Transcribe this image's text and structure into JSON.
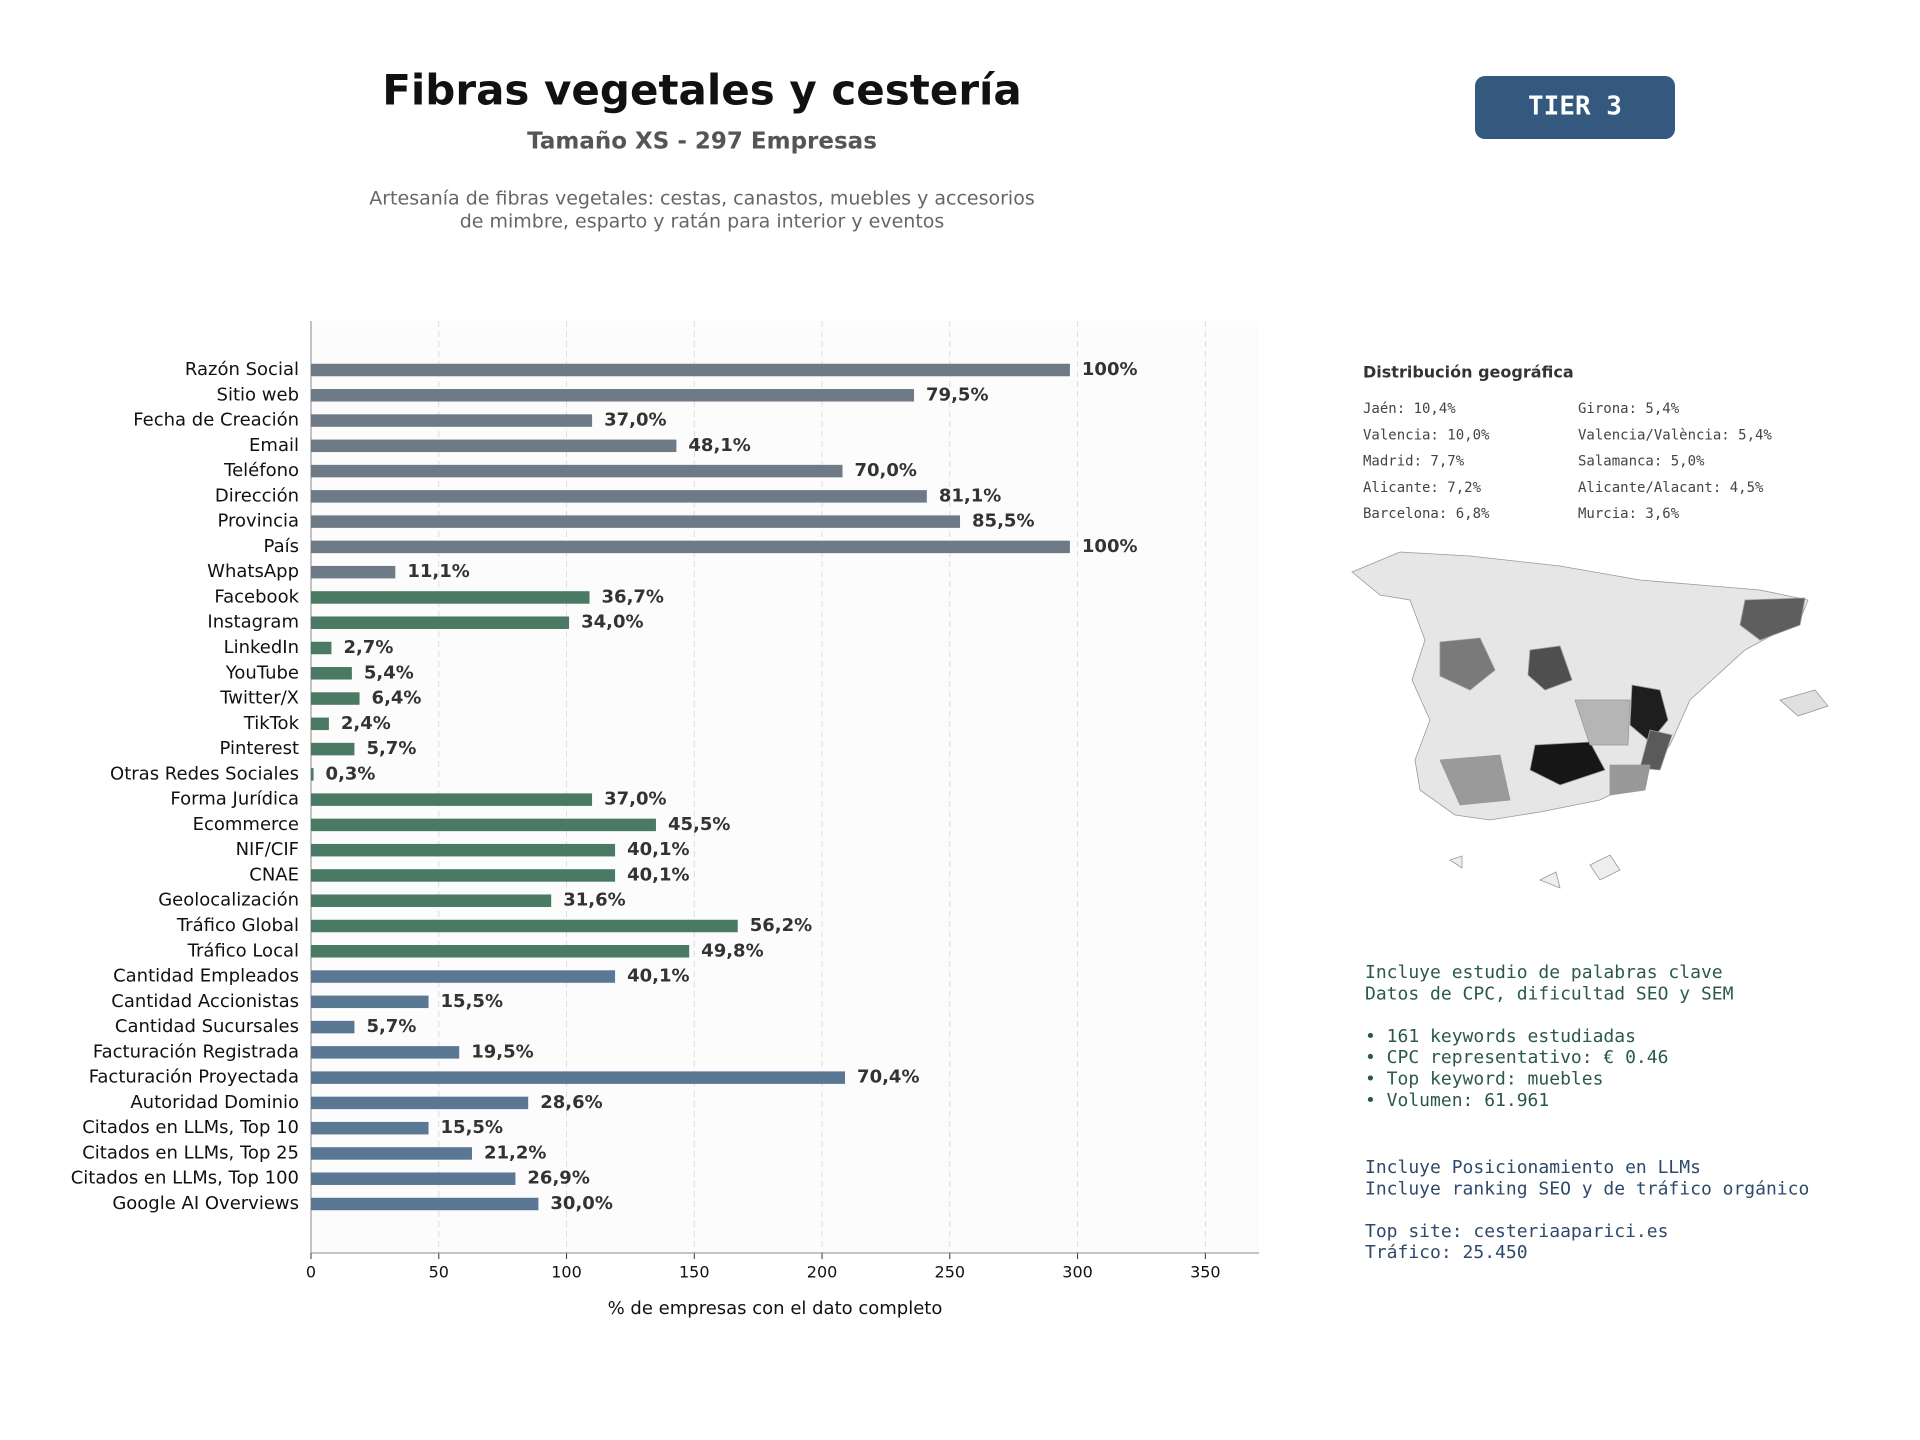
{
  "chart_data": {
    "type": "bar",
    "orientation": "horizontal",
    "title": "Fibras vegetales y cestería",
    "subtitle": "Tamaño XS - 297 Empresas",
    "description": [
      "Artesanía de fibras vegetales: cestas, canastos, muebles y accesorios",
      "de mimbre, esparto y ratán para interior y eventos"
    ],
    "badge": "TIER 3",
    "x_label": "% de empresas con el dato completo",
    "categories": [
      "Razón Social",
      "Sitio web",
      "Fecha de Creación",
      "Email",
      "Teléfono",
      "Dirección",
      "Provincia",
      "País",
      "WhatsApp",
      "Facebook",
      "Instagram",
      "LinkedIn",
      "YouTube",
      "Twitter/X",
      "TikTok",
      "Pinterest",
      "Otras Redes Sociales",
      "Forma Jurídica",
      "Ecommerce",
      "NIF/CIF",
      "CNAE",
      "Geolocalización",
      "Tráfico Global",
      "Tráfico Local",
      "Cantidad Empleados",
      "Cantidad Accionistas",
      "Cantidad Sucursales",
      "Facturación Registrada",
      "Facturación Proyectada",
      "Autoridad Dominio",
      "Citados en LLMs, Top 10",
      "Citados en LLMs, Top 25",
      "Citados en LLMs, Top 100",
      "Google AI Overviews"
    ],
    "values": [
      297,
      236,
      110,
      143,
      208,
      241,
      254,
      297,
      33,
      109,
      101,
      8,
      16,
      19,
      7,
      17,
      1,
      110,
      135,
      119,
      119,
      94,
      167,
      148,
      119,
      46,
      17,
      58,
      209,
      85,
      46,
      63,
      80,
      89
    ],
    "value_labels": [
      "100%",
      "79,5%",
      "37,0%",
      "48,1%",
      "70,0%",
      "81,1%",
      "85,5%",
      "100%",
      "11,1%",
      "36,7%",
      "34,0%",
      "2,7%",
      "5,4%",
      "6,4%",
      "2,4%",
      "5,7%",
      "0,3%",
      "37,0%",
      "45,5%",
      "40,1%",
      "40,1%",
      "31,6%",
      "56,2%",
      "49,8%",
      "40,1%",
      "15,5%",
      "5,7%",
      "19,5%",
      "70,4%",
      "28,6%",
      "15,5%",
      "21,2%",
      "26,9%",
      "30,0%"
    ],
    "colors": [
      "#6e7a86",
      "#6e7a86",
      "#6e7a86",
      "#6e7a86",
      "#6e7a86",
      "#6e7a86",
      "#6e7a86",
      "#6e7a86",
      "#6e7a86",
      "#4a7a64",
      "#4a7a64",
      "#4a7a64",
      "#4a7a64",
      "#4a7a64",
      "#4a7a64",
      "#4a7a64",
      "#4a7a64",
      "#4a7a64",
      "#4a7a64",
      "#4a7a64",
      "#4a7a64",
      "#4a7a64",
      "#4a7a64",
      "#4a7a64",
      "#5a7894",
      "#5a7894",
      "#5a7894",
      "#5a7894",
      "#5a7894",
      "#5a7894",
      "#5a7894",
      "#5a7894",
      "#5a7894",
      "#5a7894"
    ],
    "xlim": [
      0,
      371
    ],
    "xticks": [
      0,
      50,
      100,
      150,
      200,
      250,
      300,
      350
    ],
    "grid": true
  },
  "geo": {
    "title": "Distribución geográfica",
    "items": [
      "Jaén: 10,4%",
      "Valencia: 10,0%",
      "Madrid: 7,7%",
      "Alicante: 7,2%",
      "Barcelona: 6,8%",
      "Girona: 5,4%",
      "Valencia/València: 5,4%",
      "Salamanca: 5,0%",
      "Alicante/Alacant: 4,5%",
      "Murcia: 3,6%"
    ]
  },
  "keywords": {
    "intro": [
      "Incluye estudio de palabras clave",
      "Datos de CPC, dificultad SEO y SEM"
    ],
    "bullets": [
      "• 161 keywords estudiadas",
      "• CPC representativo: € 0.46",
      "• Top keyword: muebles",
      "• Volumen: 61.961"
    ]
  },
  "llm": {
    "intro": [
      "Incluye Posicionamiento en LLMs",
      "Incluye ranking SEO y de tráfico orgánico"
    ],
    "top": [
      "Top site: cesteriaaparici.es",
      "Tráfico: 25.450"
    ]
  }
}
